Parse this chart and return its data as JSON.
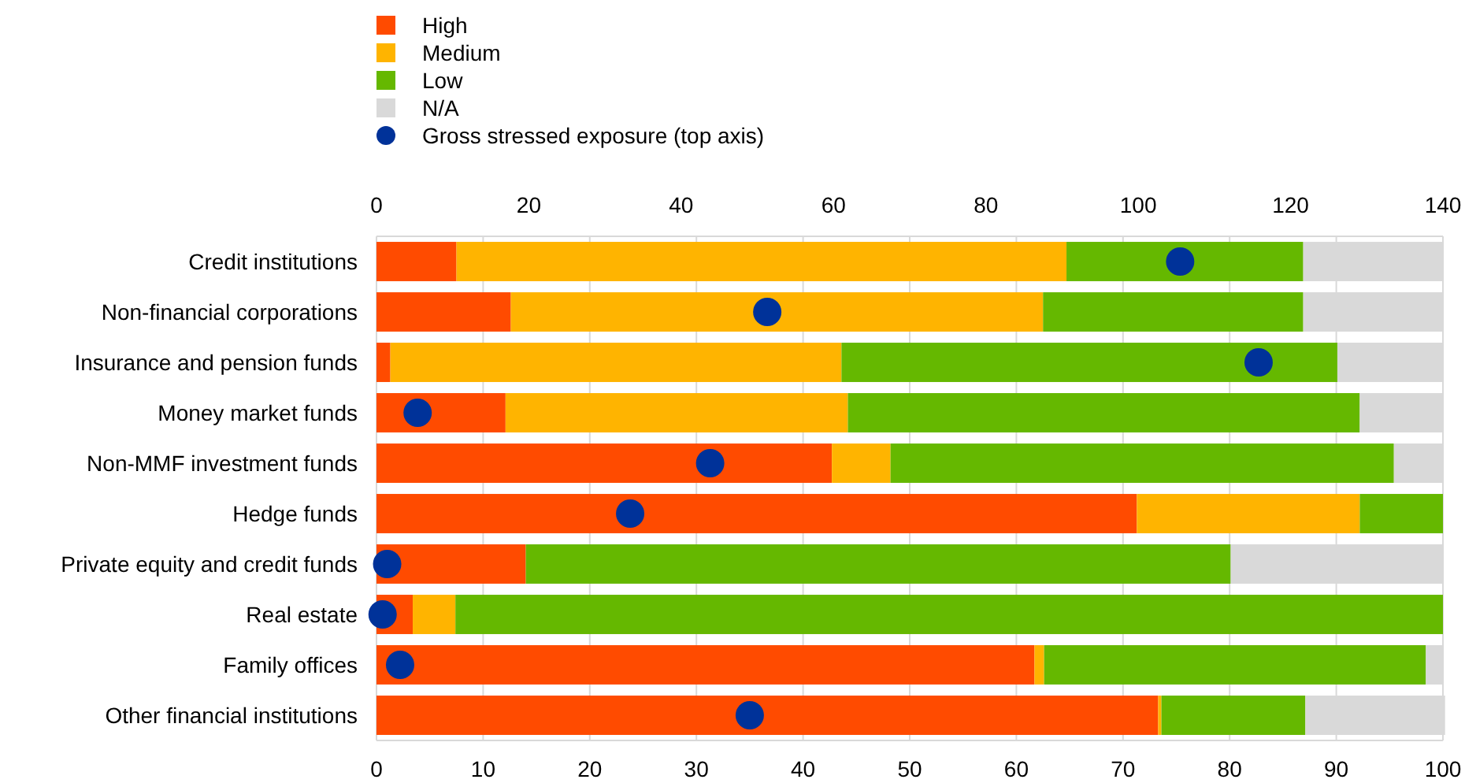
{
  "chart_data": {
    "type": "bar",
    "orientation": "horizontal",
    "stacked": true,
    "categories": [
      "Credit institutions",
      "Non-financial corporations",
      "Insurance and pension funds",
      "Money market funds",
      "Non-MMF investment funds",
      "Hedge funds",
      "Private equity and credit funds",
      "Real estate",
      "Family offices",
      "Other financial institutions"
    ],
    "series": [
      {
        "name": "High",
        "color": "#ff4b00",
        "values": [
          7.5,
          12.6,
          1.3,
          12.1,
          42.7,
          71.3,
          14.0,
          3.4,
          61.7,
          73.3
        ]
      },
      {
        "name": "Medium",
        "color": "#ffb400",
        "values": [
          57.2,
          49.9,
          42.3,
          32.1,
          5.5,
          20.9,
          0,
          4.0,
          0.9,
          0.3
        ]
      },
      {
        "name": "Low",
        "color": "#65b800",
        "values": [
          22.2,
          24.4,
          46.5,
          48.0,
          47.2,
          7.8,
          66.1,
          92.6,
          35.8,
          13.5
        ]
      },
      {
        "name": "N/A",
        "color": "#d9d9d9",
        "values": [
          13.1,
          13.1,
          9.9,
          7.8,
          4.6,
          0,
          19.9,
          0,
          1.6,
          13.1
        ]
      },
      {
        "name": "Gross stressed exposure (top axis)",
        "type": "scatter",
        "axis": "x2",
        "color": "#003299",
        "values": [
          105.5,
          51.3,
          115.8,
          5.4,
          43.8,
          33.3,
          1.4,
          0.8,
          3.1,
          49.0
        ]
      }
    ],
    "xlim": [
      0,
      100
    ],
    "xticks": [
      0,
      10,
      20,
      30,
      40,
      50,
      60,
      70,
      80,
      90,
      100
    ],
    "x2lim": [
      0,
      140
    ],
    "x2ticks": [
      0,
      20,
      40,
      60,
      80,
      100,
      120,
      140
    ],
    "grid": "x",
    "legend": "top",
    "marker": "circle"
  }
}
